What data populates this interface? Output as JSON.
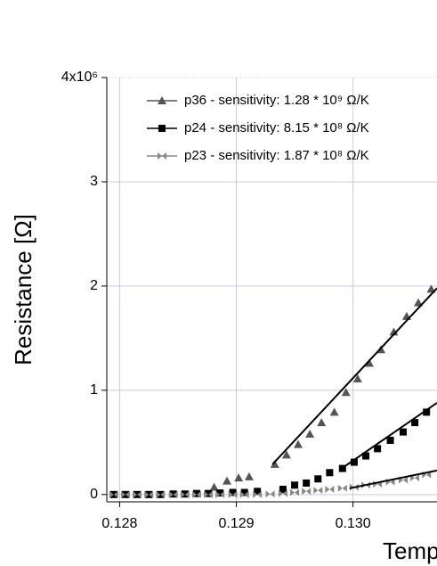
{
  "chart_data": {
    "type": "scatter",
    "y_label": "Resistance [Ω]",
    "x_label": "Temp",
    "xlim": [
      0.12789,
      0.13072
    ],
    "ylim": [
      -0.07,
      4
    ],
    "xticks": [
      0.128,
      0.129,
      {
        "value": 0.13,
        "label": "0.130"
      }
    ],
    "yticks": [
      0,
      1,
      2,
      3,
      {
        "value": 4,
        "label": "4x10⁶"
      }
    ],
    "grid": true,
    "legend": "upper left",
    "series": [
      {
        "name": "p36 - sensitivity: 1.28 * 10⁹ Ω/K",
        "color": "#555555",
        "marker": "triangle",
        "x": [
          0.12881,
          0.12892,
          0.12902,
          0.12911,
          0.12933,
          0.12943,
          0.12953,
          0.12963,
          0.12973,
          0.12984,
          0.12994,
          0.13004,
          0.13014,
          0.13024,
          0.13035,
          0.13046,
          0.13056,
          0.13067
        ],
        "values": [
          0.07,
          0.13,
          0.16,
          0.17,
          0.29,
          0.38,
          0.48,
          0.58,
          0.69,
          0.79,
          0.98,
          1.11,
          1.26,
          1.39,
          1.56,
          1.71,
          1.84,
          1.97
        ],
        "fit_x": [
          0.12931,
          0.13072
        ],
        "fit_y": [
          0.29,
          1.98
        ]
      },
      {
        "name": "p24 - sensitivity: 8.15 * 10⁸ Ω/K",
        "color": "#000000",
        "marker": "square",
        "x": [
          0.12795,
          0.12805,
          0.12815,
          0.12825,
          0.12835,
          0.12846,
          0.12856,
          0.12866,
          0.12876,
          0.12886,
          0.12897,
          0.12907,
          0.12918,
          0.1294,
          0.1295,
          0.1296,
          0.1297,
          0.1298,
          0.12991,
          0.13001,
          0.13011,
          0.13021,
          0.13032,
          0.13043,
          0.13053,
          0.13063
        ],
        "values": [
          0,
          0,
          0,
          0,
          0,
          0.005,
          0.005,
          0.01,
          0.01,
          0.015,
          0.02,
          0.02,
          0.03,
          0.05,
          0.09,
          0.11,
          0.15,
          0.21,
          0.25,
          0.31,
          0.37,
          0.44,
          0.52,
          0.6,
          0.69,
          0.79
        ],
        "fit_x": [
          0.12989,
          0.13072
        ],
        "fit_y": [
          0.24,
          0.88
        ]
      },
      {
        "name": "p23 - sensitivity: 1.87 * 10⁸ Ω/K",
        "color": "#888888",
        "marker": "bowtie",
        "x": [
          0.12795,
          0.12805,
          0.12815,
          0.12825,
          0.12835,
          0.12846,
          0.12856,
          0.12866,
          0.12876,
          0.12886,
          0.12897,
          0.12907,
          0.12918,
          0.12929,
          0.1294,
          0.1295,
          0.1296,
          0.1297,
          0.1298,
          0.12991,
          0.13001,
          0.13011,
          0.13021,
          0.13032,
          0.13043,
          0.13053,
          0.13063
        ],
        "values": [
          0,
          0,
          0,
          0,
          0,
          0,
          0,
          0,
          0,
          0,
          0,
          0,
          0,
          0.005,
          0.01,
          0.02,
          0.03,
          0.04,
          0.05,
          0.06,
          0.07,
          0.09,
          0.1,
          0.12,
          0.14,
          0.16,
          0.19
        ],
        "fit_x": [
          0.12997,
          0.13072
        ],
        "fit_y": [
          0.06,
          0.23
        ]
      }
    ]
  }
}
